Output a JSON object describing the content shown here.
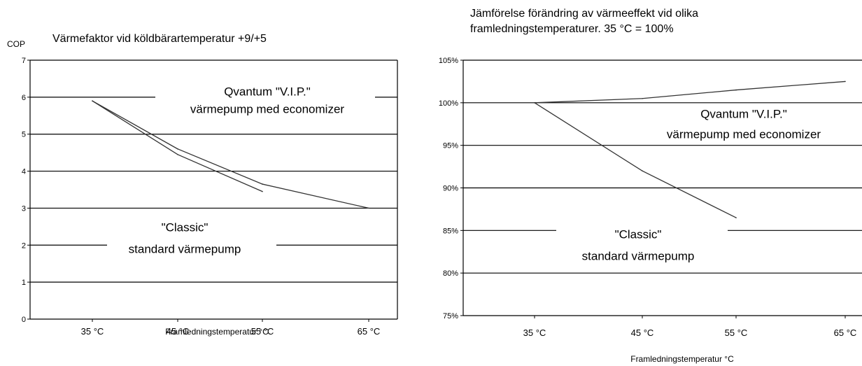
{
  "chart_data": [
    {
      "type": "line",
      "title": "Värmefaktor vid köldbärartemperatur +9/+5",
      "ylabel": "COP",
      "xlabel": "Framledningstemperatur °C",
      "categories": [
        "35 °C",
        "45 °C",
        "55 °C",
        "65 °C"
      ],
      "ylim": [
        0,
        7
      ],
      "yticks": [
        "0",
        "1",
        "2",
        "3",
        "4",
        "5",
        "6",
        "7"
      ],
      "grid": true,
      "series": [
        {
          "name": "Qvantum \"V.I.P.\" värmepump med economizer",
          "values": [
            5.9,
            4.6,
            3.65,
            3.0
          ]
        },
        {
          "name": "\"Classic\" standard värmepump",
          "values": [
            5.9,
            4.45,
            3.45,
            null
          ]
        }
      ],
      "annotations": [
        {
          "lines": [
            "Qvantum \"V.I.P.\"",
            "värmepump med economizer"
          ]
        },
        {
          "lines": [
            "\"Classic\"",
            "standard värmepump"
          ]
        }
      ]
    },
    {
      "type": "line",
      "title": "Jämförelse förändring av värmeeffekt vid olika framledningstemperaturer.  35 °C = 100%",
      "title_lines": [
        "Jämförelse förändring av värmeeffekt vid olika",
        "framledningstemperaturer.  35 °C = 100%"
      ],
      "ylabel": "",
      "xlabel": "Framledningstemperatur °C",
      "categories": [
        "35 °C",
        "45 °C",
        "55 °C",
        "65 °C"
      ],
      "ylim": [
        75,
        105
      ],
      "yticks": [
        "75%",
        "80%",
        "85%",
        "90%",
        "95%",
        "100%",
        "105%"
      ],
      "grid": true,
      "series": [
        {
          "name": "Qvantum \"V.I.P.\" värmepump med economizer",
          "values": [
            100,
            100.5,
            101.5,
            102.5
          ]
        },
        {
          "name": "\"Classic\" standard värmepump",
          "values": [
            100,
            92,
            86.5,
            null
          ]
        }
      ],
      "annotations": [
        {
          "lines": [
            "Qvantum \"V.I.P.\"",
            "värmepump med economizer"
          ]
        },
        {
          "lines": [
            "\"Classic\"",
            "standard värmepump"
          ]
        }
      ]
    }
  ]
}
